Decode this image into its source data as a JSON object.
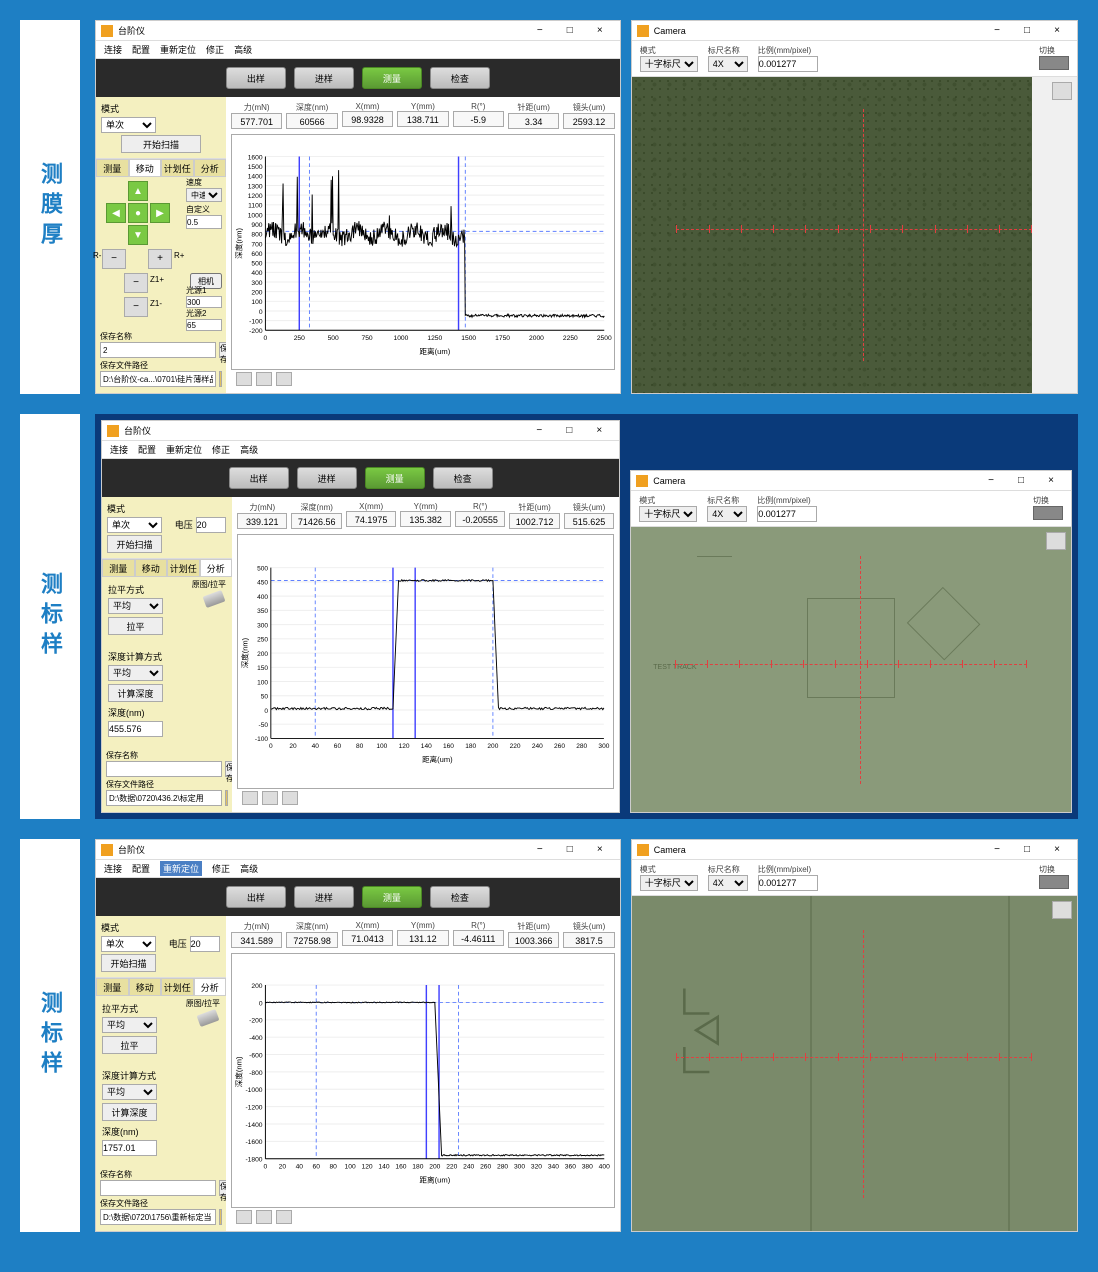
{
  "rows": [
    {
      "label": "测膜厚"
    },
    {
      "label": "测标样"
    },
    {
      "label": "测标样"
    }
  ],
  "profiler_window": {
    "title": "台阶仪",
    "menu": [
      "连接",
      "配置",
      "重新定位",
      "修正",
      "高级"
    ],
    "toolbar": {
      "btn1": "出样",
      "btn2": "进样",
      "btn3": "测量",
      "btn4": "检查"
    },
    "mode_label": "模式",
    "mode_value": "单次",
    "voltage_label": "电压",
    "voltage_value": "20",
    "scan_btn": "开始扫描",
    "tabs": [
      "测量",
      "移动",
      "计划任务",
      "分析"
    ],
    "speed_label": "速度",
    "speed_value": "中速",
    "custom_label": "自定义",
    "custom_value": "0.5",
    "light1_label": "光源1",
    "light1_value": "300",
    "light2_label": "光源2",
    "light2_value": "65",
    "camera_btn": "相机",
    "level_method_label": "拉平方式",
    "level_method_value": "平均",
    "level_btn": "拉平",
    "orig_level_label": "原图/拉平",
    "depth_method_label": "深度计算方式",
    "depth_method_value": "平均",
    "calc_depth_btn": "计算深度",
    "depth_label": "深度(nm)",
    "save_name_label": "保存名称",
    "save_btn": "保存",
    "save_path_label": "保存文件路径"
  },
  "camera_window": {
    "title": "Camera",
    "mode_label": "模式",
    "mode_value": "十字标尺图",
    "ruler_label": "标尺名称",
    "ruler_value": "4X",
    "ratio_label": "比例(mm/pixel)",
    "ratio_value": "0.001277",
    "switch_label": "切换"
  },
  "row1_readouts": {
    "labels": [
      "力(mN)",
      "深度(nm)",
      "X(mm)",
      "Y(mm)",
      "R(°)",
      "针距(um)",
      "镜头(um)"
    ],
    "values": [
      "577.701",
      "60566",
      "98.9328",
      "138.711",
      "-5.9",
      "3.34",
      "2593.12"
    ],
    "save_name": "2",
    "save_path": "D:\\台阶仪-ca...\\0701\\硅片薄样品",
    "chart": {
      "ylim": [
        -200,
        1600
      ],
      "yticks": [
        -200,
        -100,
        0,
        100,
        200,
        300,
        400,
        500,
        600,
        700,
        800,
        900,
        1000,
        1100,
        1200,
        1300,
        1400,
        1500,
        1600
      ],
      "xlim": [
        0,
        2500
      ],
      "xticks": [
        0,
        250,
        500,
        750,
        1000,
        1250,
        1500,
        1750,
        2000,
        2250,
        2500
      ],
      "xlabel": "距离(um)",
      "ylabel": "深度(nm)",
      "cursor1": 250,
      "cursor2": 1425,
      "dash1": 325,
      "dash2": 1475,
      "dashH": 825
    }
  },
  "row2_readouts": {
    "labels": [
      "力(mN)",
      "深度(nm)",
      "X(mm)",
      "Y(mm)",
      "R(°)",
      "针距(um)",
      "镜头(um)"
    ],
    "values": [
      "339.121",
      "71426.56",
      "74.1975",
      "135.382",
      "-0.20555",
      "1002.712",
      "515.625"
    ],
    "depth_value": "455.576",
    "save_name": "",
    "save_path": "D:\\数据\\0720\\436.2\\标定用",
    "chart": {
      "ylim": [
        -100,
        500
      ],
      "yticks": [
        -100,
        -50,
        0,
        50,
        100,
        150,
        200,
        250,
        300,
        350,
        400,
        450,
        500
      ],
      "xlim": [
        0,
        300
      ],
      "xticks": [
        0,
        20,
        40,
        60,
        80,
        100,
        120,
        140,
        160,
        180,
        200,
        220,
        240,
        260,
        280,
        300
      ],
      "xlabel": "距离(um)",
      "ylabel": "深度(nm)",
      "cursor1": 110,
      "cursor2": 130,
      "dash1": 40,
      "dash2": 200,
      "dashH": 455
    }
  },
  "row3_readouts": {
    "labels": [
      "力(mN)",
      "深度(nm)",
      "X(mm)",
      "Y(mm)",
      "R(°)",
      "针距(um)",
      "镜头(um)"
    ],
    "values": [
      "341.589",
      "72758.98",
      "71.0413",
      "131.12",
      "-4.46111",
      "1003.366",
      "3817.5"
    ],
    "depth_value": "1757.01",
    "save_name": "",
    "save_path": "D:\\数据\\0720\\1756\\重新标定当",
    "menu_active": 2,
    "chart": {
      "ylim": [
        -1800,
        200
      ],
      "yticks": [
        -1800,
        -1600,
        -1400,
        -1200,
        -1000,
        -800,
        -600,
        -400,
        -200,
        0,
        200
      ],
      "xlim": [
        0,
        400
      ],
      "xticks": [
        0,
        20,
        40,
        60,
        80,
        100,
        120,
        140,
        160,
        180,
        200,
        220,
        240,
        260,
        280,
        300,
        320,
        340,
        360,
        380,
        400
      ],
      "xlabel": "距离(um)",
      "ylabel": "深度(nm)",
      "cursor1": 190,
      "cursor2": 205,
      "dash1": 60,
      "dash2": 228,
      "dashH": 0
    }
  },
  "colors": {
    "page_bg": "#1e7fc4",
    "panel_bg": "#f4f0c0",
    "green_btn": "#7ac943",
    "cursor_solid": "#4040ff",
    "cursor_dash": "#6080ff",
    "crosshair": "#e04040"
  }
}
